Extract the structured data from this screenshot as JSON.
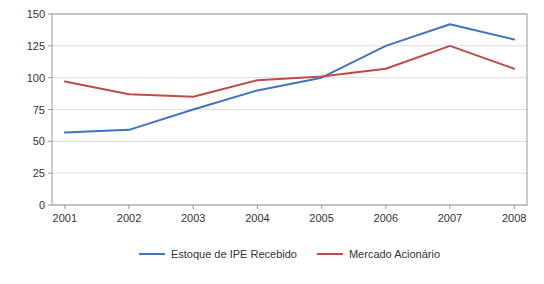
{
  "chart_data": {
    "type": "line",
    "x": [
      2001,
      2002,
      2003,
      2004,
      2005,
      2006,
      2007,
      2008
    ],
    "series": [
      {
        "name": "Estoque de IPE Recebido",
        "color": "#4472C4",
        "values": [
          57,
          59,
          75,
          90,
          100,
          125,
          142,
          130
        ]
      },
      {
        "name": "Mercado Acionário",
        "color": "#BE4B48",
        "values": [
          97,
          87,
          85,
          98,
          101,
          107,
          125,
          107
        ]
      }
    ],
    "xlim": [
      2000.8,
      2008.2
    ],
    "xticks": [
      2001,
      2002,
      2003,
      2004,
      2005,
      2006,
      2007,
      2008
    ],
    "ylim": [
      0,
      150
    ],
    "yticks": [
      0,
      25,
      50,
      75,
      100,
      125,
      150
    ],
    "grid": true,
    "legend": "bottom"
  }
}
